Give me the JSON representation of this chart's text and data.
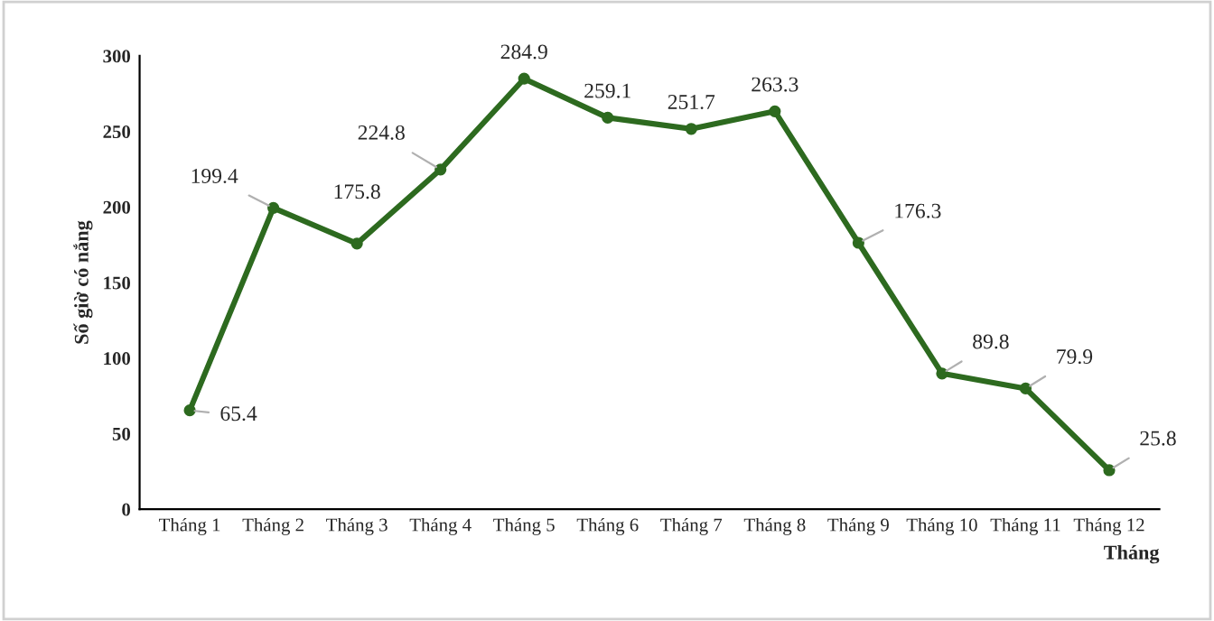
{
  "chart_data": {
    "type": "line",
    "xlabel": "Tháng",
    "ylabel": "Số giờ có nắng",
    "categories": [
      "Tháng 1",
      "Tháng 2",
      "Tháng 3",
      "Tháng 4",
      "Tháng 5",
      "Tháng 6",
      "Tháng 7",
      "Tháng 8",
      "Tháng 9",
      "Tháng 10",
      "Tháng 11",
      "Tháng 12"
    ],
    "series": [
      {
        "color": "#2d6a1f",
        "values": [
          65.4,
          199.4,
          175.8,
          224.8,
          284.9,
          259.1,
          251.7,
          263.3,
          176.3,
          89.8,
          79.9,
          25.8
        ]
      }
    ],
    "ylim": [
      0,
      300
    ],
    "yticks": [
      0,
      50,
      100,
      150,
      200,
      250,
      300
    ],
    "grid": false,
    "marker": "circle",
    "line_style": "solid",
    "data_labels": true
  }
}
